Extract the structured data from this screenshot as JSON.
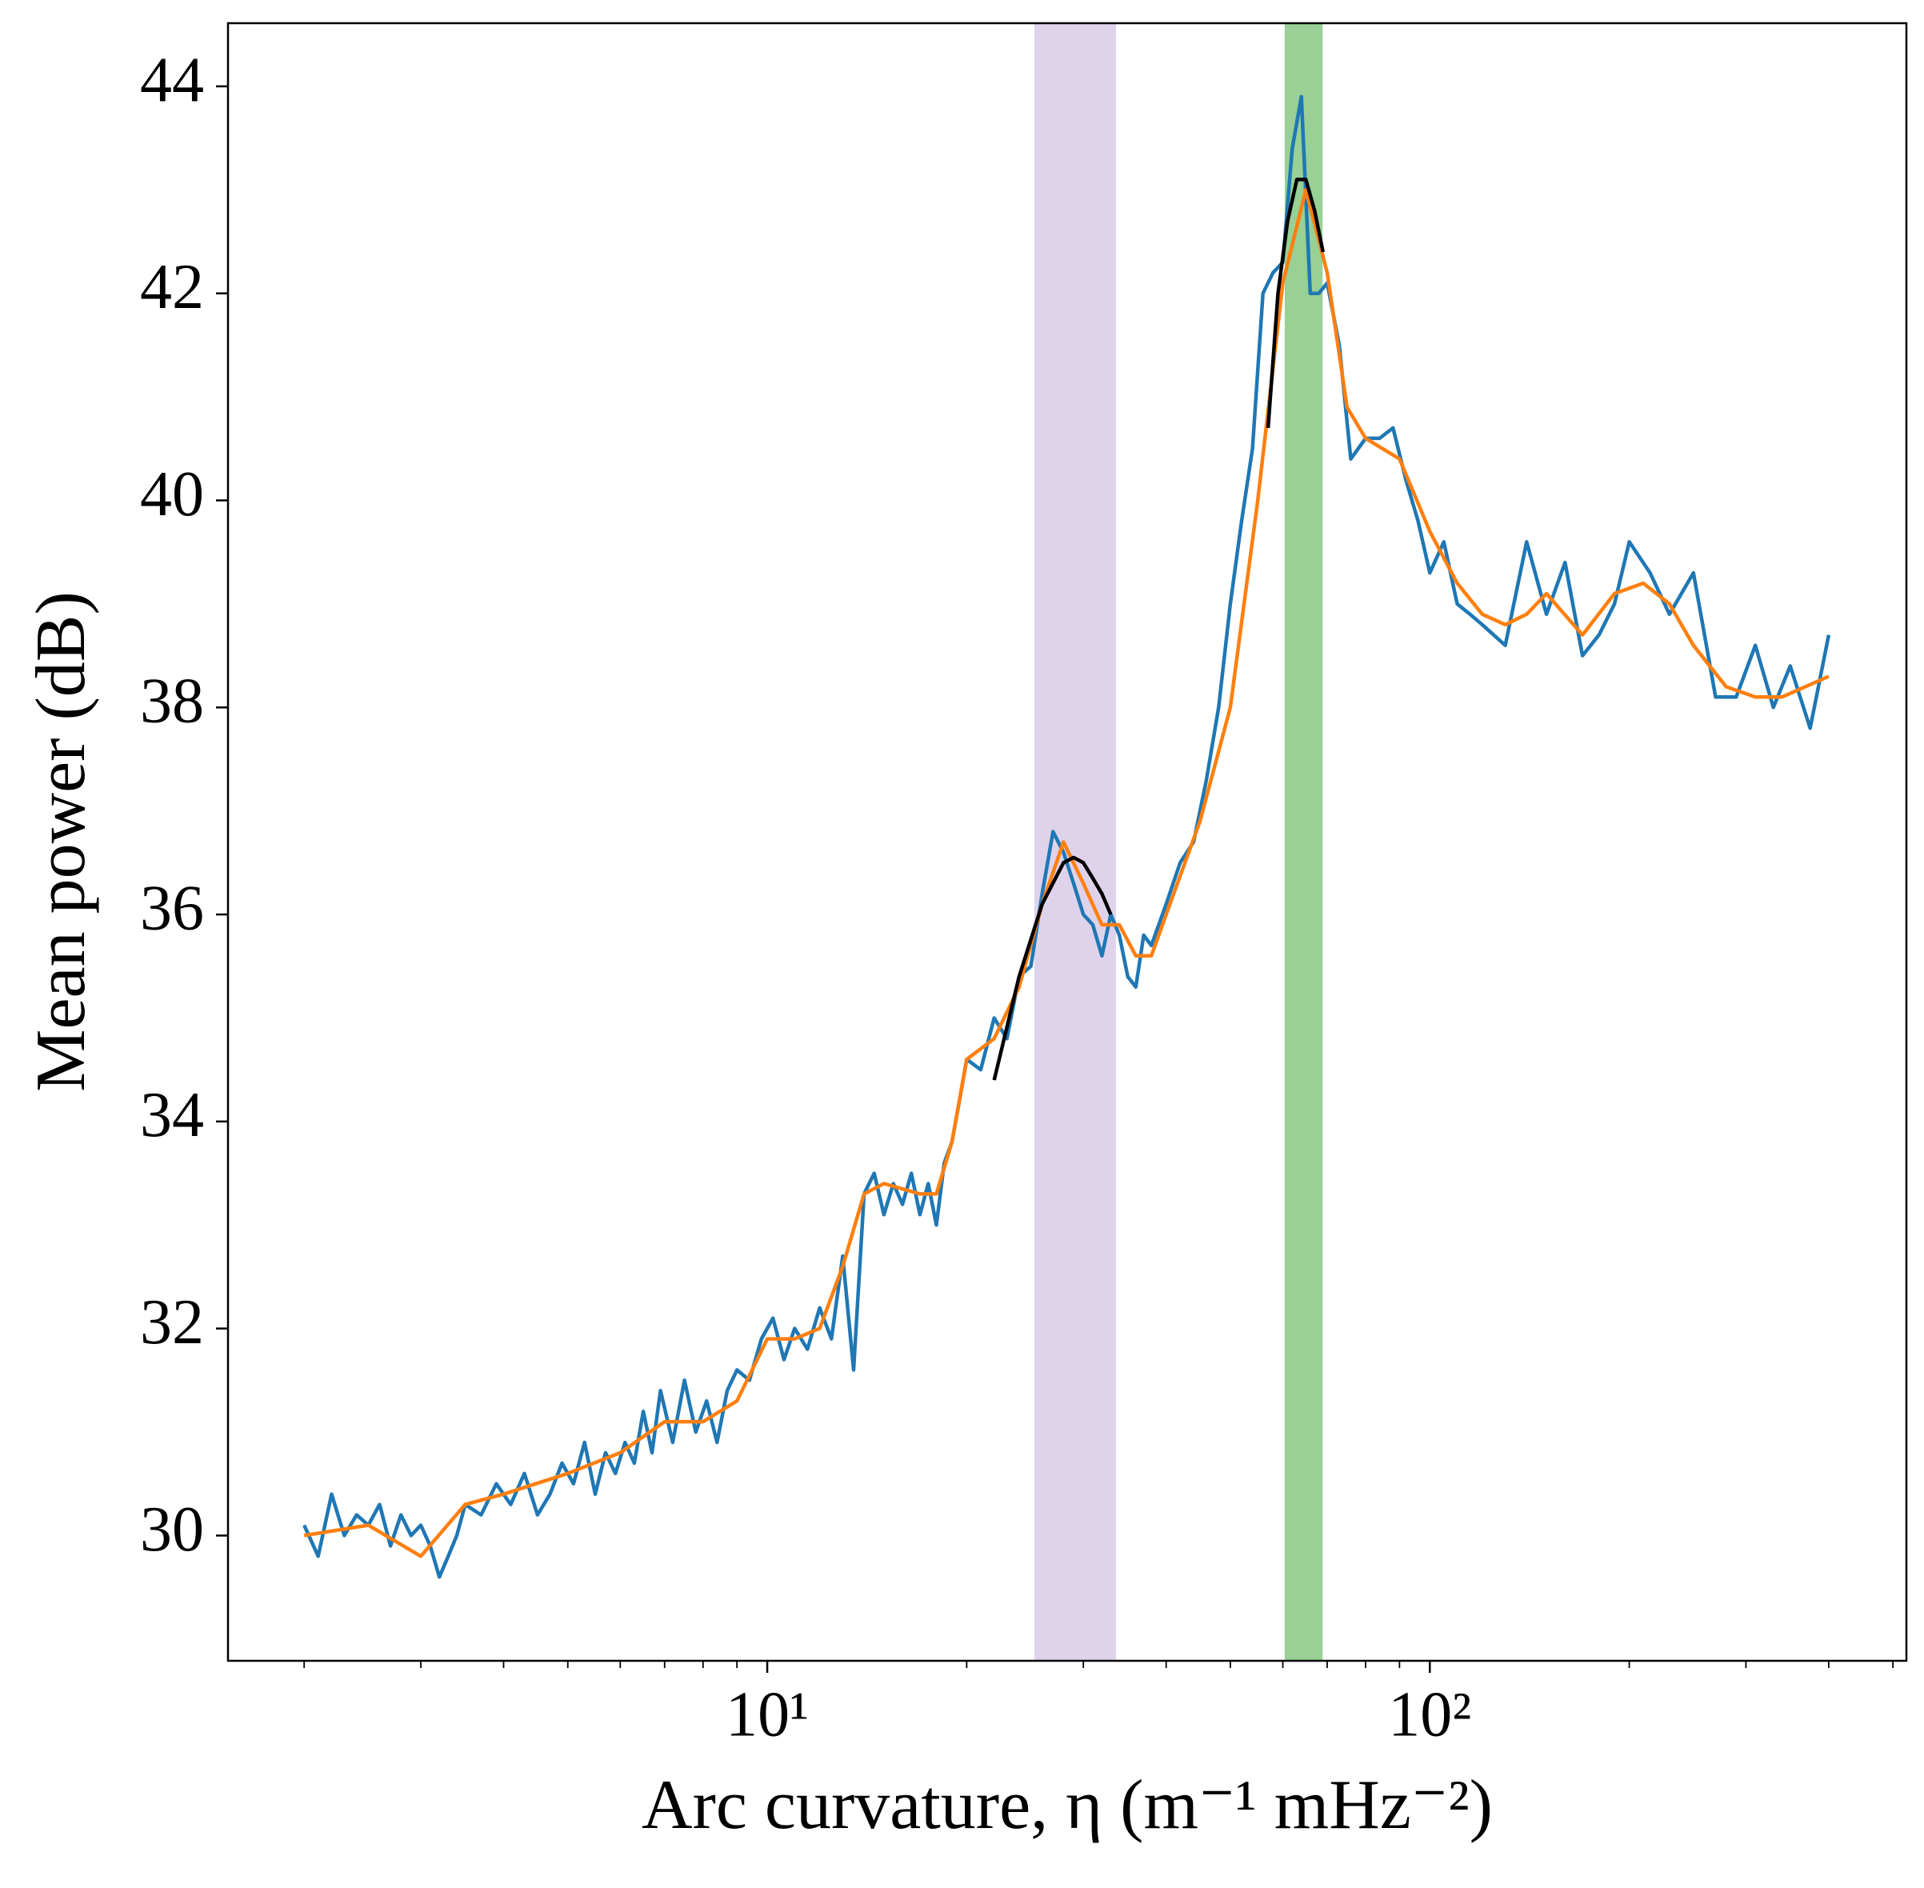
{
  "chart_data": {
    "type": "line",
    "xlabel": "Arc curvature, η (m⁻¹ mHz⁻²)",
    "ylabel": "Mean power (dB)",
    "xscale": "log",
    "xlim": [
      1.535,
      524
    ],
    "ylim": [
      28.79,
      44.61
    ],
    "xticks": [
      {
        "value": 10,
        "label": "10¹"
      },
      {
        "value": 100,
        "label": "10²"
      }
    ],
    "xminorticks": [
      2,
      3,
      4,
      5,
      6,
      7,
      8,
      9,
      20,
      30,
      40,
      50,
      60,
      70,
      80,
      90,
      200,
      300,
      400,
      500
    ],
    "yticks": [
      30,
      32,
      34,
      36,
      38,
      40,
      42,
      44
    ],
    "grid": false,
    "spans": [
      {
        "x0": 25.3,
        "x1": 33.6,
        "color": "#dfd3ec"
      },
      {
        "x0": 60.4,
        "x1": 68.9,
        "color": "#98d095"
      }
    ],
    "series": [
      {
        "color": "#1f77b4",
        "x": [
          2.0,
          2.1,
          2.2,
          2.3,
          2.4,
          2.5,
          2.6,
          2.7,
          2.8,
          2.9,
          3.0,
          3.1,
          3.2,
          3.3,
          3.4,
          3.5,
          3.7,
          3.9,
          4.1,
          4.3,
          4.5,
          4.7,
          4.9,
          5.1,
          5.3,
          5.5,
          5.7,
          5.9,
          6.1,
          6.3,
          6.5,
          6.7,
          6.9,
          7.2,
          7.5,
          7.8,
          8.1,
          8.4,
          8.7,
          9.0,
          9.4,
          9.8,
          10.2,
          10.6,
          11.0,
          11.5,
          12.0,
          12.5,
          13.0,
          13.5,
          14.0,
          14.5,
          15.0,
          15.5,
          16,
          16.5,
          17,
          17.5,
          18,
          18.5,
          19,
          19.5,
          20,
          21,
          22,
          23,
          24,
          25,
          26,
          27,
          28,
          29,
          30,
          31,
          32,
          33,
          34,
          35,
          36,
          37,
          38,
          40,
          42,
          44,
          46,
          48,
          50,
          52,
          54,
          56,
          58,
          60,
          62,
          64,
          66,
          68,
          70,
          73,
          76,
          80,
          84,
          88,
          92,
          96,
          100,
          105,
          110,
          115,
          120,
          130,
          140,
          150,
          160,
          170,
          180,
          190,
          200,
          215,
          230,
          250,
          270,
          290,
          310,
          330,
          350,
          375,
          400
        ],
        "values": [
          30.1,
          29.8,
          30.4,
          30.0,
          30.2,
          30.1,
          30.3,
          29.9,
          30.2,
          30.0,
          30.1,
          29.9,
          29.6,
          29.8,
          30.0,
          30.3,
          30.2,
          30.5,
          30.3,
          30.6,
          30.2,
          30.4,
          30.7,
          30.5,
          30.9,
          30.4,
          30.8,
          30.6,
          30.9,
          30.7,
          31.2,
          30.8,
          31.4,
          30.9,
          31.5,
          31.0,
          31.3,
          30.9,
          31.4,
          31.6,
          31.5,
          31.9,
          32.1,
          31.7,
          32.0,
          31.8,
          32.2,
          31.9,
          32.7,
          31.6,
          33.3,
          33.5,
          33.1,
          33.4,
          33.2,
          33.5,
          33.1,
          33.4,
          33.0,
          33.6,
          33.8,
          34.2,
          34.6,
          34.5,
          35.0,
          34.8,
          35.4,
          35.5,
          36.2,
          36.8,
          36.6,
          36.3,
          36.0,
          35.9,
          35.6,
          36.0,
          35.8,
          35.4,
          35.3,
          35.8,
          35.7,
          36.1,
          36.5,
          36.7,
          37.3,
          38.0,
          39.0,
          39.8,
          40.5,
          42.0,
          42.2,
          42.3,
          43.4,
          43.9,
          42.0,
          42.0,
          42.1,
          41.5,
          40.4,
          40.6,
          40.6,
          40.7,
          40.2,
          39.8,
          39.3,
          39.6,
          39.0,
          38.9,
          38.8,
          38.6,
          39.6,
          38.9,
          39.4,
          38.5,
          38.7,
          39.0,
          39.6,
          39.3,
          38.9,
          39.3,
          38.1,
          38.1,
          38.6,
          38.0,
          38.4,
          37.8,
          38.7
        ]
      },
      {
        "color": "#ff7f0e",
        "x": [
          2,
          2.5,
          3,
          3.5,
          4,
          5,
          6,
          7,
          8,
          9,
          10,
          11,
          12,
          13,
          14,
          15,
          17,
          18,
          19,
          20,
          22,
          24,
          26,
          28,
          30,
          32,
          34,
          36,
          38,
          40,
          45,
          50,
          55,
          60,
          65,
          70,
          75,
          80,
          90,
          100,
          110,
          120,
          130,
          140,
          150,
          170,
          190,
          210,
          230,
          250,
          280,
          310,
          340,
          400
        ],
        "values": [
          30.0,
          30.1,
          29.8,
          30.3,
          30.4,
          30.6,
          30.8,
          31.1,
          31.1,
          31.3,
          31.9,
          31.9,
          32.0,
          32.6,
          33.3,
          33.4,
          33.3,
          33.3,
          33.8,
          34.6,
          34.8,
          35.3,
          36.1,
          36.7,
          36.3,
          35.9,
          35.9,
          35.6,
          35.6,
          36.0,
          36.9,
          38.0,
          40.0,
          42.1,
          43.0,
          42.2,
          40.9,
          40.6,
          40.4,
          39.7,
          39.2,
          38.9,
          38.8,
          38.9,
          39.1,
          38.7,
          39.1,
          39.2,
          39.0,
          38.6,
          38.2,
          38.1,
          38.1,
          38.3
        ]
      },
      {
        "color": "#000000",
        "x": [
          22,
          24,
          26,
          28,
          29,
          30,
          31,
          32,
          33
        ],
        "values": [
          34.4,
          35.4,
          36.1,
          36.5,
          36.55,
          36.5,
          36.35,
          36.2,
          36.0
        ]
      },
      {
        "color": "#000000",
        "x": [
          57,
          59,
          61,
          63,
          65,
          67,
          69
        ],
        "values": [
          40.7,
          42.0,
          42.7,
          43.1,
          43.1,
          42.8,
          42.4
        ]
      }
    ]
  }
}
